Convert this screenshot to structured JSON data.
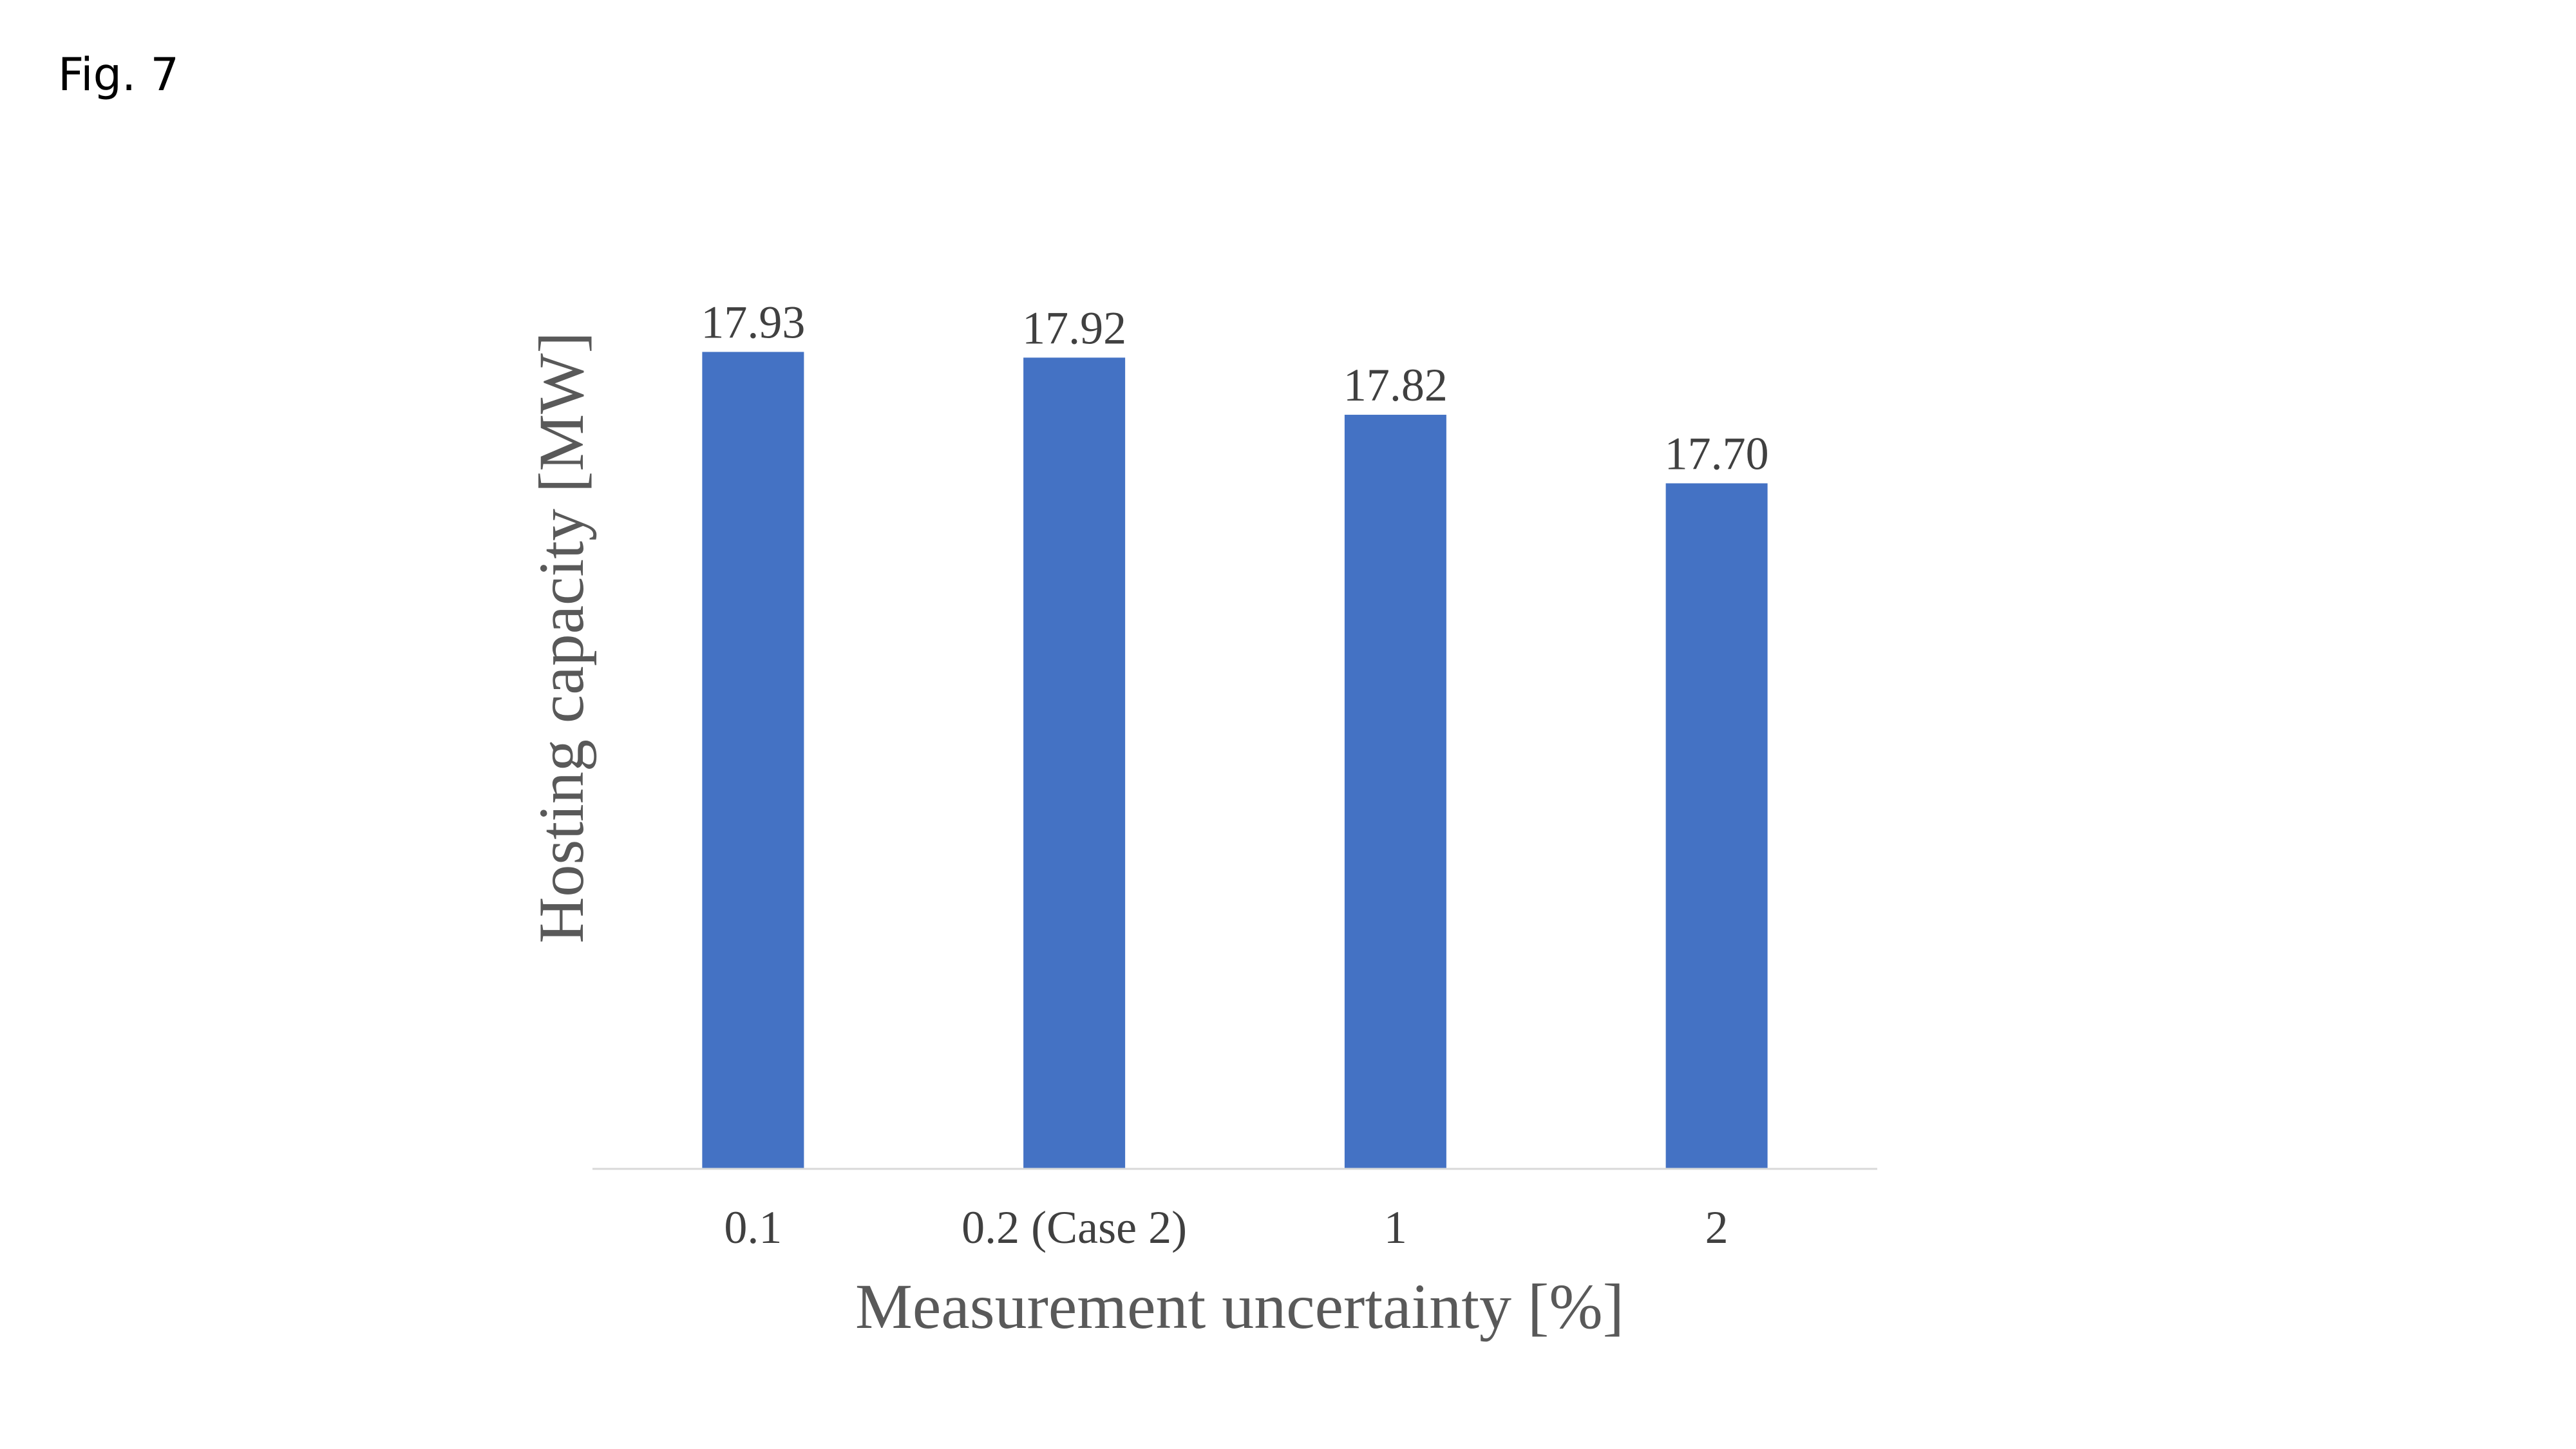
{
  "figure_label": "Fig. 7",
  "colors": {
    "bar": "#4472C4",
    "axis_line": "#D9D9D9",
    "label_text": "#404040",
    "axis_title_text": "#595959"
  },
  "chart_data": {
    "type": "bar",
    "categories": [
      "0.1",
      "0.2 (Case 2)",
      "1",
      "2"
    ],
    "values": [
      17.93,
      17.92,
      17.82,
      17.7
    ],
    "value_labels": [
      "17.93",
      "17.92",
      "17.82",
      "17.70"
    ],
    "xlabel": "Measurement uncertainty [%]",
    "ylabel": "Hosting capacity [MW]",
    "ylim": [
      16.5,
      18.05
    ],
    "grid": false,
    "legend": "none"
  }
}
